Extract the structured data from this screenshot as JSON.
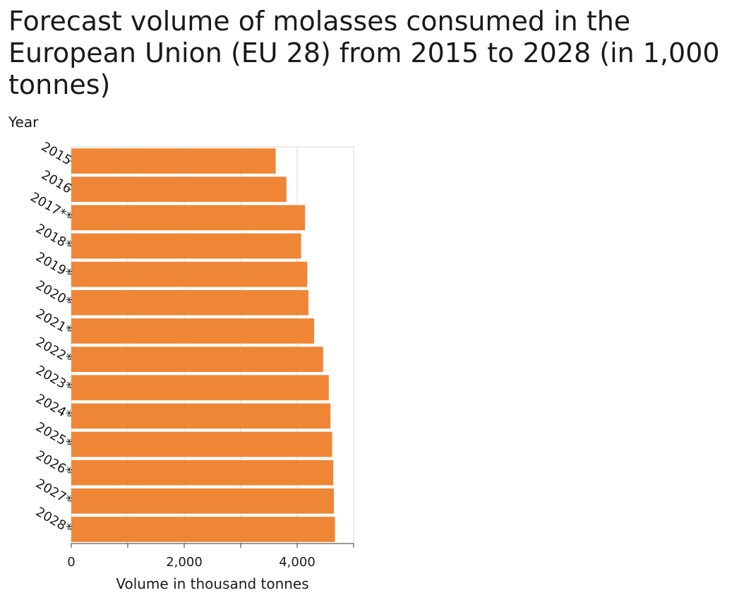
{
  "chart_data": {
    "type": "bar",
    "orientation": "horizontal",
    "title": "Forecast volume of molasses consumed in the European Union (EU 28) from 2015 to 2028 (in 1,000 tonnes)",
    "xlabel": "Volume in thousand tonnes",
    "ylabel": "Year",
    "categories": [
      "2015",
      "2016",
      "2017**",
      "2018*",
      "2019*",
      "2020*",
      "2021*",
      "2022*",
      "2023*",
      "2024*",
      "2025*",
      "2026*",
      "2027*",
      "2028*"
    ],
    "values": [
      3620,
      3810,
      4140,
      4070,
      4180,
      4200,
      4300,
      4460,
      4560,
      4590,
      4620,
      4640,
      4650,
      4670
    ],
    "xlim": [
      0,
      5000
    ],
    "xticks": [
      0,
      2000,
      4000
    ],
    "xtick_labels": [
      "0",
      "2,000",
      "4,000"
    ],
    "grid": true,
    "bar_color": "#ef8636"
  }
}
